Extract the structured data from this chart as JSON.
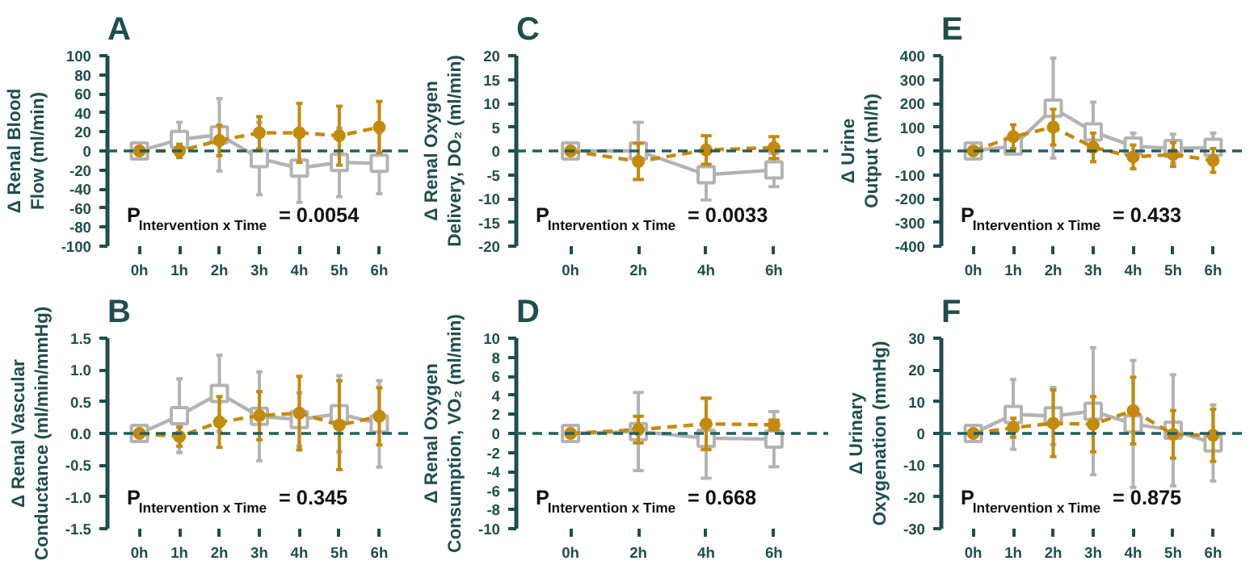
{
  "chart_data": [
    {
      "type": "line",
      "title": "A",
      "ylabel": "Δ Renal Blood Flow (ml/min)",
      "categories": [
        "0h",
        "1h",
        "2h",
        "3h",
        "4h",
        "5h",
        "6h"
      ],
      "ylim": [
        -100,
        100
      ],
      "yticks": [
        -100,
        -80,
        -60,
        -40,
        -20,
        0,
        20,
        40,
        60,
        80,
        100
      ],
      "grid": false,
      "annotations": [
        "P$_{Intervention x Time}$ = 0.0054"
      ],
      "ref_lines": [
        {
          "axis": "y",
          "value": 0,
          "color": "#1f5f5f",
          "line_style": "dashed"
        }
      ],
      "series": [
        {
          "color": "#b3b3b3",
          "marker": "square",
          "line_style": "solid",
          "values": [
            0,
            12,
            17,
            -8,
            -18,
            -12,
            -13
          ],
          "errors": [
            0,
            18,
            38,
            38,
            36,
            36,
            32
          ]
        },
        {
          "color": "#c48a0c",
          "marker": "circle",
          "line_style": "dashed",
          "values": [
            0,
            0,
            11,
            19,
            19,
            16,
            25
          ],
          "errors": [
            0,
            7,
            16,
            17,
            31,
            31,
            27
          ]
        }
      ]
    },
    {
      "type": "line",
      "title": "B",
      "ylabel": "Δ Renal Vascular Conductance (ml/min/mmHg)",
      "categories": [
        "0h",
        "1h",
        "2h",
        "3h",
        "4h",
        "5h",
        "6h"
      ],
      "ylim": [
        -1.5,
        1.5
      ],
      "yticks": [
        {
          "value": -1.5,
          "label": "-1.5"
        },
        {
          "value": -1,
          "label": "-1.0"
        },
        {
          "value": -0.5,
          "label": "-0.5"
        },
        {
          "value": 0,
          "label": "0.0"
        },
        {
          "value": 0.5,
          "label": "0.5"
        },
        {
          "value": 1,
          "label": "1.0"
        },
        {
          "value": 1.5,
          "label": "1.5"
        }
      ],
      "grid": false,
      "annotations": [
        "P$_{Intervention x Time}$ = 0.345"
      ],
      "ref_lines": [
        {
          "axis": "y",
          "value": 0,
          "color": "#1f5f5f",
          "line_style": "dashed"
        }
      ],
      "series": [
        {
          "color": "#b3b3b3",
          "marker": "square",
          "line_style": "solid",
          "values": [
            0,
            0.28,
            0.63,
            0.27,
            0.22,
            0.31,
            0.15
          ],
          "errors": [
            0,
            0.58,
            0.6,
            0.7,
            0.42,
            0.6,
            0.68
          ]
        },
        {
          "color": "#c48a0c",
          "marker": "circle",
          "line_style": "dashed",
          "values": [
            0,
            -0.05,
            0.18,
            0.28,
            0.32,
            0.13,
            0.27
          ],
          "errors": [
            0,
            0.15,
            0.4,
            0.38,
            0.58,
            0.7,
            0.45
          ]
        }
      ]
    },
    {
      "type": "line",
      "title": "C",
      "ylabel": "Δ Renal Oxygen Delivery, DO₂ (ml/min)",
      "categories": [
        "0h",
        "2h",
        "4h",
        "6h"
      ],
      "ylim": [
        -20,
        20
      ],
      "yticks": [
        -20,
        -15,
        -10,
        -5,
        0,
        5,
        10,
        15,
        20
      ],
      "grid": false,
      "annotations": [
        "P$_{Intervention x Time}$ = 0.0033"
      ],
      "ref_lines": [
        {
          "axis": "y",
          "value": 0,
          "color": "#1f5f5f",
          "line_style": "dashed"
        }
      ],
      "series": [
        {
          "color": "#b3b3b3",
          "marker": "square",
          "line_style": "solid",
          "values": [
            0,
            0,
            -5,
            -4
          ],
          "errors": [
            0,
            6,
            5.3,
            3.5
          ]
        },
        {
          "color": "#c48a0c",
          "marker": "circle",
          "line_style": "dashed",
          "values": [
            0,
            -2.2,
            0.2,
            0.7
          ],
          "errors": [
            0,
            3.8,
            3,
            2.3
          ]
        }
      ]
    },
    {
      "type": "line",
      "title": "D",
      "ylabel": "Δ Renal Oxygen Consumption, VO₂ (ml/min)",
      "categories": [
        "0h",
        "2h",
        "4h",
        "6h"
      ],
      "ylim": [
        -10,
        10
      ],
      "yticks": [
        -10,
        -8,
        -6,
        -4,
        -2,
        0,
        2,
        4,
        6,
        8,
        10
      ],
      "grid": false,
      "annotations": [
        "P$_{Intervention x Time}$ = 0.668"
      ],
      "ref_lines": [
        {
          "axis": "y",
          "value": 0,
          "color": "#1f5f5f",
          "line_style": "dashed"
        }
      ],
      "series": [
        {
          "color": "#b3b3b3",
          "marker": "square",
          "line_style": "solid",
          "values": [
            0,
            0.2,
            -0.5,
            -0.6
          ],
          "errors": [
            0,
            4.1,
            4.2,
            2.9
          ]
        },
        {
          "color": "#c48a0c",
          "marker": "circle",
          "line_style": "dashed",
          "values": [
            0,
            0.4,
            1,
            0.9
          ],
          "errors": [
            0,
            1.4,
            2.7,
            0.5
          ]
        }
      ]
    },
    {
      "type": "line",
      "title": "E",
      "ylabel": "Δ Urine Output (ml/h)",
      "categories": [
        "0h",
        "1h",
        "2h",
        "3h",
        "4h",
        "5h",
        "6h"
      ],
      "ylim": [
        -400,
        400
      ],
      "yticks": [
        -400,
        -300,
        -200,
        -100,
        0,
        100,
        200,
        300,
        400
      ],
      "grid": false,
      "annotations": [
        "P$_{Intervention x Time}$ = 0.433"
      ],
      "ref_lines": [
        {
          "axis": "y",
          "value": 0,
          "color": "#1f5f5f",
          "line_style": "dashed"
        }
      ],
      "series": [
        {
          "color": "#b3b3b3",
          "marker": "square",
          "line_style": "solid",
          "values": [
            0,
            20,
            180,
            80,
            20,
            10,
            15
          ],
          "errors": [
            0,
            20,
            210,
            125,
            55,
            60,
            60
          ]
        },
        {
          "color": "#c48a0c",
          "marker": "circle",
          "line_style": "dashed",
          "values": [
            0,
            60,
            100,
            15,
            -25,
            -15,
            -40
          ],
          "errors": [
            0,
            50,
            75,
            60,
            50,
            50,
            50
          ]
        }
      ]
    },
    {
      "type": "line",
      "title": "F",
      "ylabel": "Δ Urinary Oxygenation (mmHg)",
      "categories": [
        "0h",
        "1h",
        "2h",
        "3h",
        "4h",
        "5h",
        "6h"
      ],
      "ylim": [
        -30,
        30
      ],
      "yticks": [
        -30,
        -20,
        -10,
        0,
        10,
        20,
        30
      ],
      "grid": false,
      "annotations": [
        "P$_{Intervention x Time}$ = 0.875"
      ],
      "ref_lines": [
        {
          "axis": "y",
          "value": 0,
          "color": "#1f5f5f",
          "line_style": "dashed"
        }
      ],
      "series": [
        {
          "color": "#b3b3b3",
          "marker": "square",
          "line_style": "solid",
          "values": [
            0,
            6,
            5.5,
            7,
            3,
            1,
            -3
          ],
          "errors": [
            0,
            11,
            9,
            20,
            20,
            17.5,
            12
          ]
        },
        {
          "color": "#c48a0c",
          "marker": "circle",
          "line_style": "dashed",
          "values": [
            0,
            1.8,
            3.2,
            2.9,
            7.2,
            -0.3,
            -0.6
          ],
          "errors": [
            0,
            3,
            10.5,
            8.7,
            10.5,
            7.5,
            8.2
          ]
        }
      ]
    }
  ]
}
